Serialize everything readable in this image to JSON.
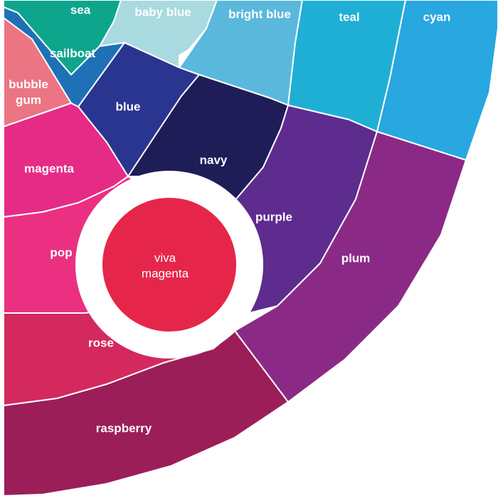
{
  "center": {
    "line1": "viva",
    "line2": "magenta",
    "color": "#E5264A"
  },
  "segments": [
    {
      "id": "sea",
      "label": "sea",
      "color": "#0EA58D"
    },
    {
      "id": "baby-blue",
      "label": "baby blue",
      "color": "#A8DADF"
    },
    {
      "id": "bright-blue",
      "label": "bright blue",
      "color": "#5AB8DC"
    },
    {
      "id": "teal",
      "label": "teal",
      "color": "#1FAFD5"
    },
    {
      "id": "cyan",
      "label": "cyan",
      "color": "#28A7E0"
    },
    {
      "id": "sailboat",
      "label": "sailboat",
      "color": "#1E71B5"
    },
    {
      "id": "bubble-gum",
      "label": "bubble\ngum",
      "color": "#EC7583"
    },
    {
      "id": "blue",
      "label": "blue",
      "color": "#2A3590"
    },
    {
      "id": "navy",
      "label": "navy",
      "color": "#1E1D57"
    },
    {
      "id": "purple",
      "label": "purple",
      "color": "#5E2B8F"
    },
    {
      "id": "plum",
      "label": "plum",
      "color": "#8B2A86"
    },
    {
      "id": "magenta",
      "label": "magenta",
      "color": "#E62B86"
    },
    {
      "id": "pop",
      "label": "pop",
      "color": "#EB3082"
    },
    {
      "id": "rose",
      "label": "rose",
      "color": "#D3295E"
    },
    {
      "id": "raspberry",
      "label": "raspberry",
      "color": "#9C1E59"
    }
  ]
}
